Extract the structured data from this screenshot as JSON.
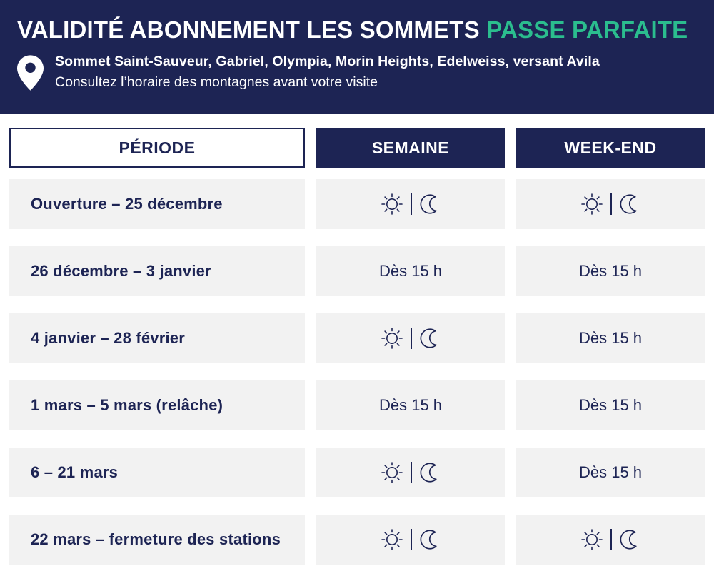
{
  "theme": {
    "navy": "#1d2454",
    "green": "#2bbd8e",
    "row_bg": "#f2f2f2",
    "white": "#ffffff"
  },
  "header": {
    "title_main": "VALIDITÉ ABONNEMENT LES SOMMETS",
    "title_accent": "PASSE PARFAITE",
    "pin_icon": "location-pin-icon",
    "location_line": "Sommet Saint-Sauveur, Gabriel, Olympia, Morin Heights, Edelweiss, versant Avila",
    "note_line": "Consultez l’horaire des montagnes avant votre visite"
  },
  "table": {
    "columns": [
      "PÉRIODE",
      "SEMAINE",
      "WEEK-END"
    ],
    "icon_meaning": {
      "day-night": "sun-icon and moon-icon (open day and night)"
    },
    "rows": [
      {
        "period": "Ouverture – 25 décembre",
        "semaine": {
          "kind": "icons",
          "value": "day-night"
        },
        "weekend": {
          "kind": "icons",
          "value": "day-night"
        }
      },
      {
        "period": "26 décembre – 3 janvier",
        "semaine": {
          "kind": "text",
          "value": "Dès 15 h"
        },
        "weekend": {
          "kind": "text",
          "value": "Dès 15 h"
        }
      },
      {
        "period": "4 janvier – 28 février",
        "semaine": {
          "kind": "icons",
          "value": "day-night"
        },
        "weekend": {
          "kind": "text",
          "value": "Dès 15 h"
        }
      },
      {
        "period": "1 mars – 5 mars (relâche)",
        "semaine": {
          "kind": "text",
          "value": "Dès 15 h"
        },
        "weekend": {
          "kind": "text",
          "value": "Dès 15 h"
        }
      },
      {
        "period": "6 – 21 mars",
        "semaine": {
          "kind": "icons",
          "value": "day-night"
        },
        "weekend": {
          "kind": "text",
          "value": "Dès 15 h"
        }
      },
      {
        "period": "22 mars – fermeture des stations",
        "semaine": {
          "kind": "icons",
          "value": "day-night"
        },
        "weekend": {
          "kind": "icons",
          "value": "day-night"
        }
      }
    ]
  }
}
